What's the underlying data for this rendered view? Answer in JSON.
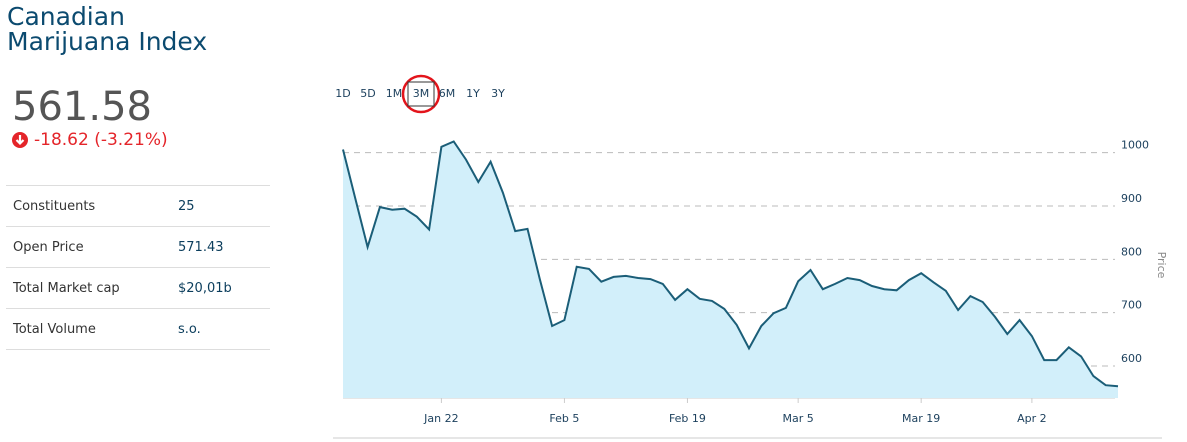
{
  "header": {
    "title": "Canadian Marijuana Index",
    "price": "561.58",
    "change": "-18.62 (-3.21%)"
  },
  "stats": [
    [
      "Constituents",
      "25"
    ],
    [
      "Open Price",
      "571.43"
    ],
    [
      "Total Market cap",
      "$20,01b"
    ],
    [
      "Total Volume",
      "s.o."
    ]
  ],
  "ranges": [
    {
      "label": "1D"
    },
    {
      "label": "5D"
    },
    {
      "label": "1M"
    },
    {
      "label": "3M",
      "selected": true
    },
    {
      "label": "6M"
    },
    {
      "label": "1Y"
    },
    {
      "label": "3Y"
    }
  ],
  "chart_data": {
    "type": "area",
    "y_label": "Price",
    "color": "#1b5e78",
    "fill": "#d2effa",
    "grid": true,
    "categories": [
      null,
      null,
      null,
      null,
      null,
      null,
      null,
      null,
      "Jan 22",
      null,
      null,
      null,
      null,
      null,
      null,
      null,
      null,
      null,
      "Feb 5",
      null,
      null,
      null,
      null,
      null,
      null,
      null,
      null,
      null,
      "Feb 19",
      null,
      null,
      null,
      null,
      null,
      null,
      null,
      null,
      "Mar 5",
      null,
      null,
      null,
      null,
      null,
      null,
      null,
      null,
      null,
      "Mar 19",
      null,
      null,
      null,
      null,
      null,
      null,
      null,
      null,
      "Apr 2",
      null,
      null,
      null,
      null,
      null,
      null,
      null
    ],
    "values": [
      1006,
      914,
      823,
      898,
      893,
      895,
      880,
      856,
      1011,
      1021,
      987,
      945,
      983,
      925,
      853,
      857,
      763,
      675,
      686,
      786,
      782,
      758,
      767,
      769,
      765,
      763,
      754,
      724,
      744,
      726,
      722,
      707,
      677,
      633,
      675,
      699,
      709,
      759,
      780,
      744,
      754,
      765,
      761,
      750,
      744,
      742,
      761,
      774,
      757,
      741,
      705,
      731,
      720,
      692,
      660,
      686,
      656,
      611,
      611,
      635,
      618,
      581,
      564,
      562
    ],
    "ylim": [
      540,
      1050
    ],
    "yticks": [
      600,
      700,
      800,
      900,
      1000
    ]
  }
}
